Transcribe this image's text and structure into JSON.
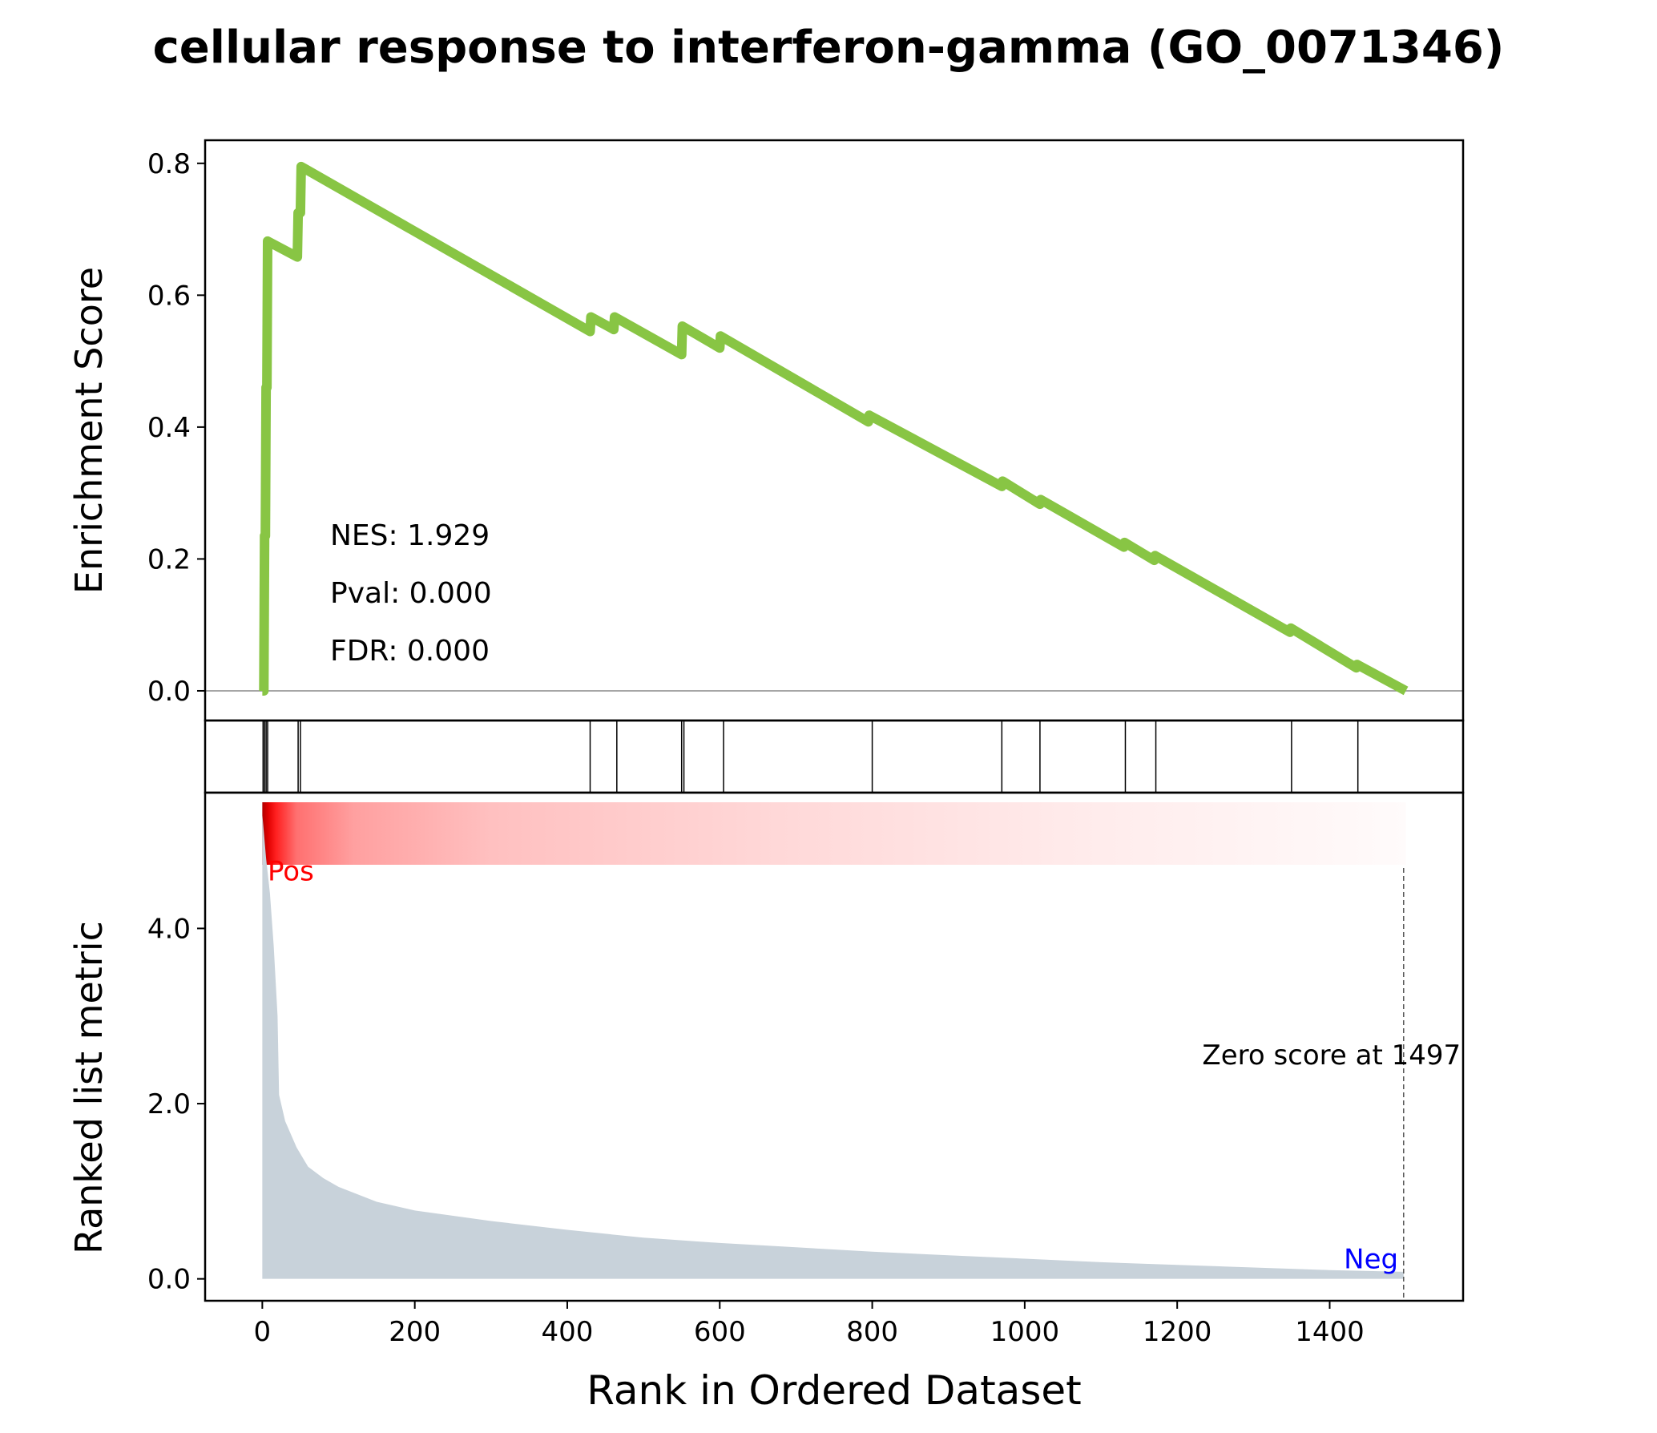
{
  "colors": {
    "es_line": "#88c544",
    "metric_fill": "#c8d2da",
    "pos_label": "#ff0000",
    "neg_label": "#0000ff",
    "heat_high": "#ff0000",
    "heat_low": "#ffffff"
  },
  "chart_data": {
    "type": "line",
    "title": "cellular response to interferon-gamma (GO_0071346)",
    "xlabel": "Rank in Ordered Dataset",
    "xlim": [
      -75,
      1575
    ],
    "x_ticks": [
      "0",
      "200",
      "400",
      "600",
      "800",
      "1000",
      "1200",
      "1400"
    ],
    "enrichment": {
      "ylabel": "Enrichment Score",
      "ylim": [
        -0.045,
        0.835
      ],
      "y_ticks": [
        "0.0",
        "0.2",
        "0.4",
        "0.6",
        "0.8"
      ],
      "stats": [
        "NES: 1.929",
        "Pval: 0.000",
        "FDR: 0.000"
      ],
      "points": [
        [
          0,
          0.0
        ],
        [
          2,
          0.0
        ],
        [
          3,
          0.235
        ],
        [
          4,
          0.235
        ],
        [
          5,
          0.46
        ],
        [
          6,
          0.46
        ],
        [
          7,
          0.682
        ],
        [
          46,
          0.658
        ],
        [
          47,
          0.725
        ],
        [
          50,
          0.725
        ],
        [
          51,
          0.795
        ],
        [
          430,
          0.545
        ],
        [
          431,
          0.567
        ],
        [
          461,
          0.548
        ],
        [
          462,
          0.567
        ],
        [
          550,
          0.51
        ],
        [
          551,
          0.553
        ],
        [
          600,
          0.52
        ],
        [
          601,
          0.538
        ],
        [
          795,
          0.408
        ],
        [
          796,
          0.418
        ],
        [
          970,
          0.31
        ],
        [
          971,
          0.318
        ],
        [
          1020,
          0.283
        ],
        [
          1021,
          0.29
        ],
        [
          1130,
          0.218
        ],
        [
          1131,
          0.225
        ],
        [
          1170,
          0.198
        ],
        [
          1171,
          0.205
        ],
        [
          1348,
          0.089
        ],
        [
          1349,
          0.095
        ],
        [
          1435,
          0.035
        ],
        [
          1436,
          0.04
        ],
        [
          1500,
          0.0
        ]
      ]
    },
    "hits": [
      1,
      3,
      5,
      7,
      47,
      50,
      430,
      465,
      550,
      553,
      605,
      800,
      970,
      1020,
      1132,
      1172,
      1350,
      1437
    ],
    "metric": {
      "ylabel": "Ranked list metric",
      "ylim": [
        -0.25,
        5.55
      ],
      "y_ticks": [
        "0.0",
        "2.0",
        "4.0"
      ],
      "y_tick_values": [
        0,
        2,
        4
      ],
      "points": [
        [
          0,
          5.3
        ],
        [
          5,
          4.8
        ],
        [
          10,
          4.4
        ],
        [
          15,
          3.8
        ],
        [
          20,
          3.0
        ],
        [
          22,
          2.1
        ],
        [
          30,
          1.8
        ],
        [
          45,
          1.5
        ],
        [
          60,
          1.28
        ],
        [
          80,
          1.15
        ],
        [
          100,
          1.05
        ],
        [
          150,
          0.88
        ],
        [
          200,
          0.78
        ],
        [
          300,
          0.66
        ],
        [
          400,
          0.56
        ],
        [
          500,
          0.47
        ],
        [
          600,
          0.41
        ],
        [
          700,
          0.36
        ],
        [
          800,
          0.31
        ],
        [
          900,
          0.27
        ],
        [
          1000,
          0.23
        ],
        [
          1100,
          0.19
        ],
        [
          1200,
          0.16
        ],
        [
          1300,
          0.13
        ],
        [
          1400,
          0.1
        ],
        [
          1497,
          0.08
        ]
      ],
      "pos_label": "Pos",
      "neg_label": "Neg",
      "zero_label": "Zero score at 1497",
      "zero_rank": 1497
    },
    "heat_x_end": 1500
  }
}
